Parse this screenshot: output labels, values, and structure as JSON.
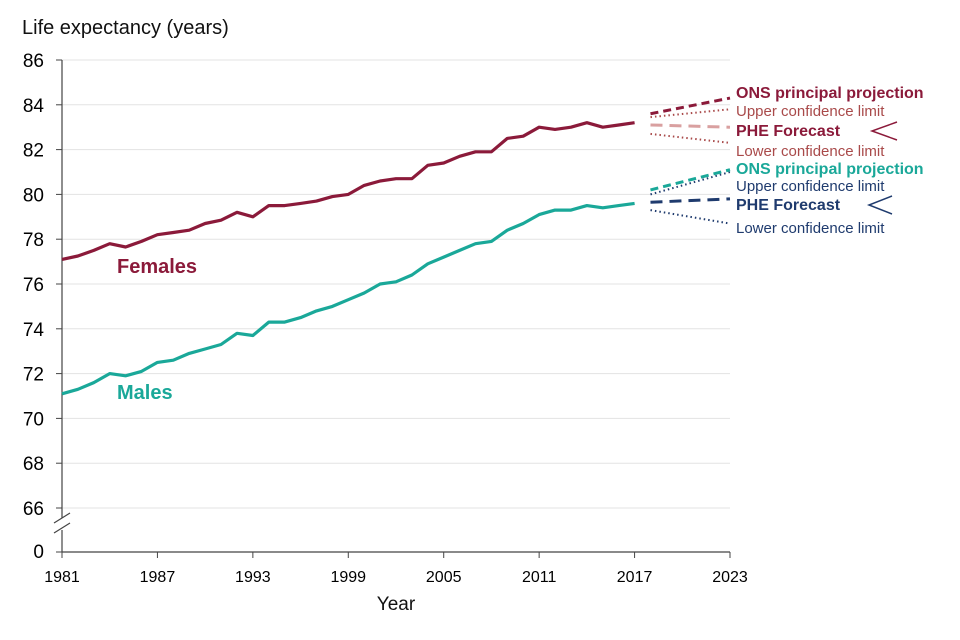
{
  "chart_data": {
    "type": "line",
    "title": "Life expectancy (years)",
    "xlabel": "Year",
    "ylabel": "Life expectancy (years)",
    "xlim": [
      1981,
      2023
    ],
    "ylim": [
      66,
      86
    ],
    "y_break_label": "0",
    "x_ticks": [
      1981,
      1987,
      1993,
      1999,
      2005,
      2011,
      2017,
      2023
    ],
    "y_ticks": [
      66,
      68,
      70,
      72,
      74,
      76,
      78,
      80,
      82,
      84,
      86
    ],
    "grid": "horizontal",
    "colors": {
      "female": "#8b1a3a",
      "female_light": "#d9a0a0",
      "female_limit": "#a94a4a",
      "male": "#1aa899",
      "male_forecast": "#1f3b6e"
    },
    "series": [
      {
        "name": "Females",
        "x": [
          1981,
          1982,
          1983,
          1984,
          1985,
          1986,
          1987,
          1988,
          1989,
          1990,
          1991,
          1992,
          1993,
          1994,
          1995,
          1996,
          1997,
          1998,
          1999,
          2000,
          2001,
          2002,
          2003,
          2004,
          2005,
          2006,
          2007,
          2008,
          2009,
          2010,
          2011,
          2012,
          2013,
          2014,
          2015,
          2016,
          2017
        ],
        "values": [
          77.1,
          77.25,
          77.5,
          77.8,
          77.65,
          77.9,
          78.2,
          78.3,
          78.4,
          78.7,
          78.85,
          79.2,
          79.0,
          79.5,
          79.5,
          79.6,
          79.7,
          79.9,
          80.0,
          80.4,
          80.6,
          80.7,
          80.7,
          81.3,
          81.4,
          81.7,
          81.9,
          81.9,
          82.5,
          82.6,
          83.0,
          82.9,
          83.0,
          83.2,
          83.0,
          83.1,
          83.2
        ]
      },
      {
        "name": "Males",
        "x": [
          1981,
          1982,
          1983,
          1984,
          1985,
          1986,
          1987,
          1988,
          1989,
          1990,
          1991,
          1992,
          1993,
          1994,
          1995,
          1996,
          1997,
          1998,
          1999,
          2000,
          2001,
          2002,
          2003,
          2004,
          2005,
          2006,
          2007,
          2008,
          2009,
          2010,
          2011,
          2012,
          2013,
          2014,
          2015,
          2016,
          2017
        ],
        "values": [
          71.1,
          71.3,
          71.6,
          72.0,
          71.9,
          72.1,
          72.5,
          72.6,
          72.9,
          73.1,
          73.3,
          73.8,
          73.7,
          74.3,
          74.3,
          74.5,
          74.8,
          75.0,
          75.3,
          75.6,
          76.0,
          76.1,
          76.4,
          76.9,
          77.2,
          77.5,
          77.8,
          77.9,
          78.4,
          78.7,
          79.1,
          79.3,
          79.3,
          79.5,
          79.4,
          79.5,
          79.6
        ]
      }
    ],
    "projections": {
      "female": {
        "ons": {
          "x": [
            2018,
            2023
          ],
          "values": [
            83.6,
            84.3
          ]
        },
        "phe": {
          "x": [
            2018,
            2023
          ],
          "values": [
            83.1,
            83.0
          ]
        },
        "upper": {
          "x": [
            2018,
            2023
          ],
          "values": [
            83.45,
            83.8
          ]
        },
        "lower": {
          "x": [
            2018,
            2023
          ],
          "values": [
            82.7,
            82.3
          ]
        }
      },
      "male": {
        "ons": {
          "x": [
            2018,
            2023
          ],
          "values": [
            80.2,
            81.1
          ]
        },
        "phe": {
          "x": [
            2018,
            2023
          ],
          "values": [
            79.65,
            79.8
          ]
        },
        "upper": {
          "x": [
            2018,
            2023
          ],
          "values": [
            80.0,
            81.0
          ]
        },
        "lower": {
          "x": [
            2018,
            2023
          ],
          "values": [
            79.3,
            78.7
          ]
        }
      }
    },
    "annotations": {
      "female": {
        "ons": "ONS principal projection",
        "upper": "Upper confidence limit",
        "phe": "PHE Forecast",
        "lower": "Lower confidence limit"
      },
      "male": {
        "ons": "ONS principal projection",
        "upper": "Upper confidence limit",
        "phe": "PHE Forecast",
        "lower": "Lower confidence limit"
      }
    }
  }
}
